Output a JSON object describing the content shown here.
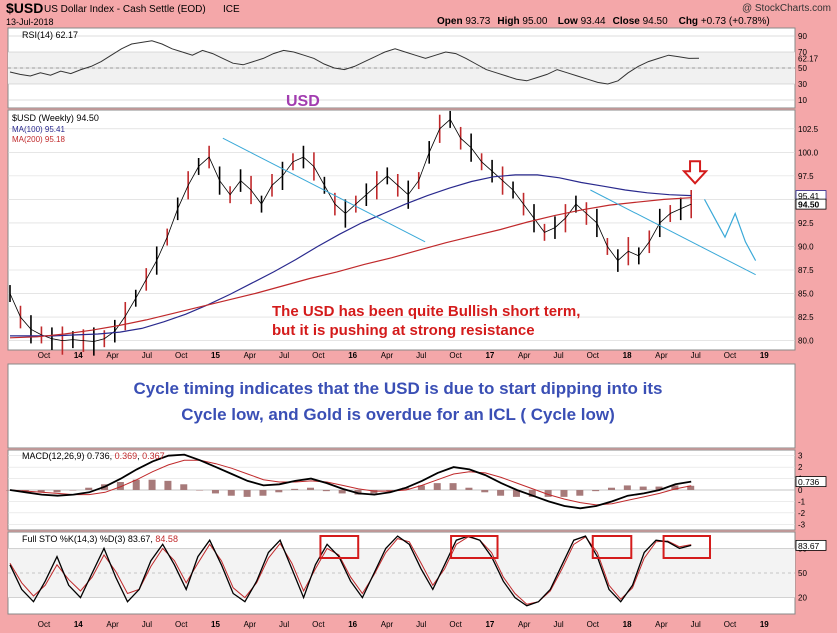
{
  "header": {
    "symbol": "$USD",
    "name": "US Dollar Index - Cash Settle (EOD)",
    "exchange": "ICE",
    "date": "13-Jul-2018",
    "watermark": "@ StockCharts.com",
    "ohlc": [
      {
        "label": "Open",
        "value": "93.73"
      },
      {
        "label": "High",
        "value": "95.00"
      },
      {
        "label": "Low",
        "value": "93.44"
      },
      {
        "label": "Close",
        "value": "94.50"
      },
      {
        "label": "Chg",
        "value": "+0.73 (+0.78%)"
      }
    ]
  },
  "chart_data": [
    {
      "type": "line",
      "panel": "rsi",
      "legend": "RSI(14) 62.17",
      "yticks": [
        10,
        30,
        50,
        70,
        90
      ],
      "ylim": [
        0,
        100
      ],
      "last_value": 62.17,
      "series": [
        {
          "name": "RSI(14)",
          "values": [
            45,
            42,
            40,
            44,
            41,
            46,
            43,
            48,
            52,
            58,
            66,
            74,
            80,
            82,
            84,
            80,
            74,
            70,
            66,
            72,
            68,
            62,
            56,
            54,
            58,
            62,
            68,
            72,
            70,
            66,
            62,
            55,
            50,
            48,
            52,
            58,
            64,
            70,
            74,
            70,
            66,
            62,
            66,
            70,
            68,
            62,
            55,
            48,
            44,
            40,
            36,
            34,
            38,
            42,
            48,
            44,
            40,
            36,
            32,
            30,
            34,
            44,
            52,
            58,
            62,
            66,
            64,
            62,
            62.17
          ]
        }
      ]
    },
    {
      "type": "line",
      "panel": "price",
      "title": "USD",
      "legend": [
        "$USD (Weekly) 94.50",
        "MA(100) 95.41",
        "MA(200) 95.18"
      ],
      "yticks": [
        80.0,
        82.5,
        85.0,
        87.5,
        90.0,
        92.5,
        95.0,
        97.5,
        100.0,
        102.5
      ],
      "ylim": [
        79.0,
        104.5
      ],
      "x_labels": [
        "Oct",
        "14",
        "Apr",
        "Jul",
        "Oct",
        "15",
        "Apr",
        "Jul",
        "Oct",
        "16",
        "Apr",
        "Jul",
        "Oct",
        "17",
        "Apr",
        "Jul",
        "Oct",
        "18",
        "Apr",
        "Jul",
        "Oct",
        "19"
      ],
      "price_tags": [
        95.41,
        94.5
      ],
      "annotation": [
        "The USD has been quite Bullish short term,",
        "but it is pushing at strong resistance"
      ],
      "series": [
        {
          "name": "$USD (Weekly)",
          "values": [
            85.0,
            82.5,
            81.2,
            80.6,
            80.2,
            80.0,
            80.1,
            80.0,
            79.9,
            80.2,
            81.0,
            82.6,
            84.5,
            86.5,
            88.5,
            91.0,
            94.0,
            96.5,
            98.5,
            99.5,
            97.0,
            95.5,
            97.0,
            96.0,
            94.5,
            96.5,
            97.5,
            99.0,
            99.5,
            98.5,
            96.5,
            94.5,
            93.5,
            94.5,
            95.5,
            96.5,
            97.5,
            96.5,
            95.5,
            97.0,
            100.0,
            102.5,
            103.5,
            101.5,
            100.5,
            99.0,
            98.0,
            97.0,
            96.0,
            94.5,
            93.0,
            91.5,
            92.0,
            93.0,
            94.5,
            93.5,
            92.5,
            90.0,
            88.5,
            89.5,
            89.0,
            90.5,
            92.5,
            93.5,
            94.0,
            94.5
          ]
        },
        {
          "name": "MA(100)",
          "values": [
            80.5,
            80.5,
            80.5,
            80.6,
            80.7,
            80.9,
            81.3,
            82.0,
            82.8,
            83.8,
            84.9,
            86.1,
            87.3,
            88.6,
            90.0,
            91.3,
            92.5,
            93.5,
            94.5,
            95.4,
            96.2,
            96.9,
            97.4,
            97.6,
            97.6,
            97.3,
            96.8,
            96.4,
            96.0,
            95.7,
            95.5,
            95.41
          ]
        },
        {
          "name": "MA(200)",
          "values": [
            80.3,
            80.4,
            80.7,
            81.1,
            81.6,
            82.2,
            82.9,
            83.6,
            84.3,
            85.0,
            85.8,
            86.6,
            87.3,
            88.1,
            88.8,
            89.6,
            90.4,
            91.1,
            91.8,
            92.6,
            93.3,
            93.9,
            94.4,
            94.7,
            95.0,
            95.18
          ]
        }
      ],
      "trendlines": [
        {
          "from": [
            96.5,
            0.3
          ],
          "to": [
            91.0,
            0.52
          ],
          "note": "descending resistance 2015-2016"
        },
        {
          "from": [
            100.5,
            0.52
          ],
          "to": [
            94.0,
            0.6
          ],
          "note": "2017 descending line"
        }
      ],
      "projection": [
        95.0,
        93.0,
        91.0,
        93.5,
        90.5,
        88.5
      ]
    },
    {
      "type": "table",
      "panel": "note",
      "lines": [
        "Cycle timing indicates that the USD is due to start dipping into its",
        "Cycle low, and Gold is overdue for an ICL ( Cycle low)"
      ]
    },
    {
      "type": "line",
      "panel": "macd",
      "legend": [
        {
          "label": "MACD(12,26,9)",
          "value": "0.736"
        },
        {
          "label": "",
          "value": "0.369"
        },
        {
          "label": "",
          "value": "0.367"
        }
      ],
      "yticks": [
        3,
        2,
        1,
        0,
        -1,
        -2,
        -3
      ],
      "ylim": [
        -3.5,
        3.5
      ],
      "last_value": 0.736,
      "series": [
        {
          "name": "MACD",
          "values": [
            0.0,
            -0.2,
            -0.4,
            -0.5,
            -0.4,
            -0.2,
            0.3,
            1.0,
            1.8,
            2.5,
            3.0,
            3.1,
            2.6,
            2.0,
            1.4,
            0.8,
            0.4,
            0.5,
            0.8,
            1.0,
            0.6,
            0.1,
            -0.3,
            -0.4,
            -0.2,
            0.2,
            0.8,
            1.5,
            2.0,
            1.8,
            1.3,
            0.6,
            0.0,
            -0.5,
            -1.0,
            -1.4,
            -1.6,
            -1.4,
            -1.0,
            -0.5,
            -0.3,
            0.0,
            0.5,
            0.736
          ]
        },
        {
          "name": "Signal",
          "values": [
            0.0,
            -0.1,
            -0.2,
            -0.3,
            -0.4,
            -0.4,
            -0.2,
            0.3,
            0.9,
            1.6,
            2.2,
            2.6,
            2.6,
            2.3,
            1.9,
            1.4,
            0.9,
            0.7,
            0.7,
            0.8,
            0.7,
            0.4,
            0.1,
            -0.1,
            -0.1,
            0.0,
            0.4,
            0.9,
            1.4,
            1.6,
            1.5,
            1.1,
            0.6,
            0.1,
            -0.4,
            -0.8,
            -1.1,
            -1.3,
            -1.2,
            -0.9,
            -0.6,
            -0.3,
            0.1,
            0.369
          ]
        },
        {
          "name": "Histogram",
          "values": [
            0.0,
            -0.1,
            -0.2,
            -0.2,
            0.0,
            0.2,
            0.5,
            0.7,
            0.9,
            0.9,
            0.8,
            0.5,
            0.0,
            -0.3,
            -0.5,
            -0.6,
            -0.5,
            -0.2,
            0.1,
            0.2,
            -0.1,
            -0.3,
            -0.4,
            -0.3,
            -0.1,
            0.2,
            0.4,
            0.6,
            0.6,
            0.2,
            -0.2,
            -0.5,
            -0.6,
            -0.6,
            -0.6,
            -0.6,
            -0.5,
            -0.1,
            0.2,
            0.4,
            0.3,
            0.3,
            0.4,
            0.367
          ]
        }
      ]
    },
    {
      "type": "line",
      "panel": "stochastic",
      "legend": [
        {
          "label": "Full STO %K(14,3) %D(3)",
          "value": "83.67"
        },
        {
          "label": "",
          "value": "84.58"
        }
      ],
      "yticks": [
        80,
        50,
        20
      ],
      "ylim": [
        0,
        100
      ],
      "last_value": 83.67,
      "series": [
        {
          "name": "%K",
          "values": [
            60,
            30,
            15,
            40,
            70,
            35,
            20,
            50,
            80,
            45,
            15,
            30,
            65,
            85,
            60,
            30,
            70,
            90,
            60,
            25,
            15,
            40,
            75,
            90,
            55,
            20,
            60,
            85,
            70,
            40,
            20,
            50,
            80,
            95,
            85,
            55,
            30,
            60,
            90,
            95,
            90,
            70,
            40,
            20,
            10,
            15,
            30,
            60,
            90,
            95,
            70,
            30,
            15,
            35,
            75,
            90,
            88,
            80,
            83.67
          ]
        },
        {
          "name": "%D",
          "values": [
            62,
            38,
            22,
            35,
            60,
            42,
            28,
            45,
            72,
            52,
            25,
            30,
            58,
            80,
            65,
            38,
            62,
            85,
            65,
            32,
            20,
            38,
            68,
            86,
            62,
            28,
            55,
            80,
            72,
            45,
            25,
            48,
            75,
            92,
            88,
            62,
            35,
            55,
            85,
            94,
            90,
            75,
            45,
            25,
            12,
            15,
            28,
            55,
            85,
            94,
            75,
            35,
            18,
            32,
            68,
            88,
            89,
            82,
            84.58
          ]
        }
      ],
      "highlight_boxes": 5
    }
  ]
}
